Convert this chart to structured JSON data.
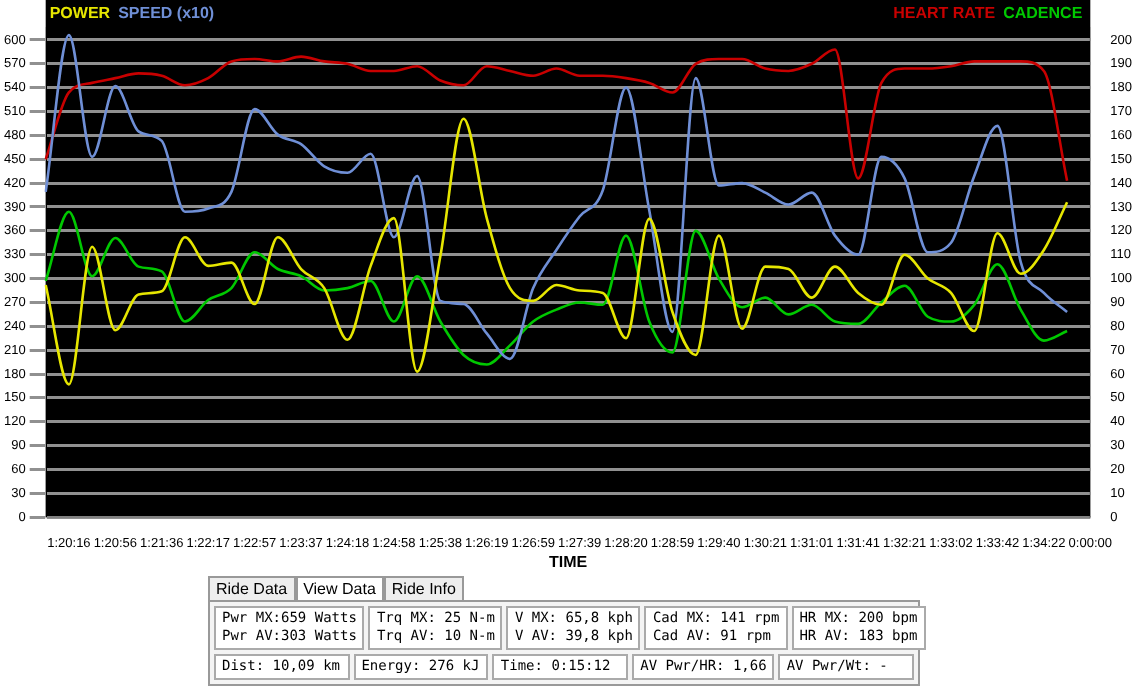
{
  "chart_data": {
    "type": "line",
    "categories": [
      null,
      "1:20:16",
      null,
      "1:20:56",
      null,
      "1:21:36",
      null,
      "1:22:17",
      null,
      "1:22:57",
      null,
      "1:23:37",
      null,
      "1:24:18",
      null,
      "1:24:58",
      null,
      "1:25:38",
      null,
      "1:26:19",
      null,
      "1:26:59",
      null,
      "1:27:39",
      null,
      "1:28:20",
      null,
      "1:28:59",
      null,
      "1:29:40",
      null,
      "1:30:21",
      null,
      "1:31:01",
      null,
      "1:31:41",
      null,
      "1:32:21",
      null,
      "1:33:02",
      null,
      "1:33:42",
      null,
      "1:34:22",
      null,
      "0:00:00"
    ],
    "series": [
      {
        "name": "POWER",
        "color": "#e6e600",
        "values": [
          292,
          167,
          340,
          235,
          280,
          284,
          352,
          316,
          320,
          268,
          352,
          312,
          288,
          223,
          316,
          376,
          183,
          328,
          501,
          376,
          288,
          272,
          292,
          285,
          282,
          225,
          375,
          258,
          204,
          354,
          237,
          315,
          312,
          276,
          315,
          282,
          267,
          330,
          300,
          282,
          234,
          357,
          306,
          336,
          396,
          null
        ]
      },
      {
        "name": "SPEED (x10)",
        "color": "#6f8fd6",
        "values": [
          409,
          606,
          453,
          542,
          485,
          473,
          384,
          388,
          409,
          513,
          481,
          469,
          441,
          433,
          457,
          352,
          429,
          272,
          268,
          231,
          199,
          288,
          336,
          378,
          411,
          540,
          386,
          233,
          552,
          417,
          420,
          408,
          393,
          408,
          354,
          330,
          453,
          426,
          333,
          345,
          429,
          492,
          321,
          282,
          258,
          null
        ]
      },
      {
        "name": "HEART RATE",
        "color": "#c80000",
        "axis": "y2",
        "values": [
          150,
          178,
          182,
          184,
          186,
          185,
          181,
          184,
          191,
          192,
          191,
          193,
          191,
          190,
          187,
          187,
          189,
          183,
          181,
          189,
          187,
          185,
          188,
          185,
          185,
          184,
          182,
          178,
          190,
          192,
          192,
          188,
          187,
          190,
          196,
          142,
          182,
          188,
          188,
          189,
          191,
          191,
          191,
          187,
          141,
          null
        ]
      },
      {
        "name": "CADENCE",
        "color": "#00c800",
        "axis": "y2",
        "values": [
          99,
          128,
          101,
          117,
          105,
          103,
          82,
          91,
          96,
          111,
          104,
          101,
          95,
          96,
          99,
          82,
          101,
          82,
          68,
          64,
          72,
          82,
          87,
          90,
          89,
          118,
          82,
          69,
          120,
          100,
          88,
          92,
          85,
          89,
          82,
          81,
          90,
          97,
          84,
          82,
          89,
          106,
          87,
          74,
          78,
          null
        ]
      }
    ],
    "xlabel": "TIME",
    "ylim": [
      0,
      615
    ],
    "yticks": [
      0,
      30,
      60,
      90,
      120,
      150,
      180,
      210,
      240,
      270,
      300,
      330,
      360,
      390,
      420,
      450,
      480,
      510,
      540,
      570,
      600
    ],
    "y2lim": [
      0,
      205
    ],
    "y2ticks": [
      0,
      10,
      20,
      30,
      40,
      50,
      60,
      70,
      80,
      90,
      100,
      110,
      120,
      130,
      140,
      150,
      160,
      170,
      180,
      190,
      200
    ],
    "grid": "y",
    "legend": "top",
    "annotations": [
      "Ride Data",
      "View Data",
      "Ride Info",
      "Pwr MX:659 Watts",
      "Pwr AV:303 Watts",
      "Trq MX: 25 N-m",
      "Trq AV: 10 N-m",
      "V MX: 65,8 kph",
      "V AV: 39,8 kph",
      "Cad MX: 141 rpm",
      "Cad AV: 91 rpm",
      "HR MX: 200 bpm",
      "HR AV: 183 bpm",
      "Dist: 10,09 km",
      "Energy: 276 kJ",
      "Time: 0:15:12",
      "AV Pwr/HR: 1,66",
      "AV Pwr/Wt: -"
    ]
  }
}
